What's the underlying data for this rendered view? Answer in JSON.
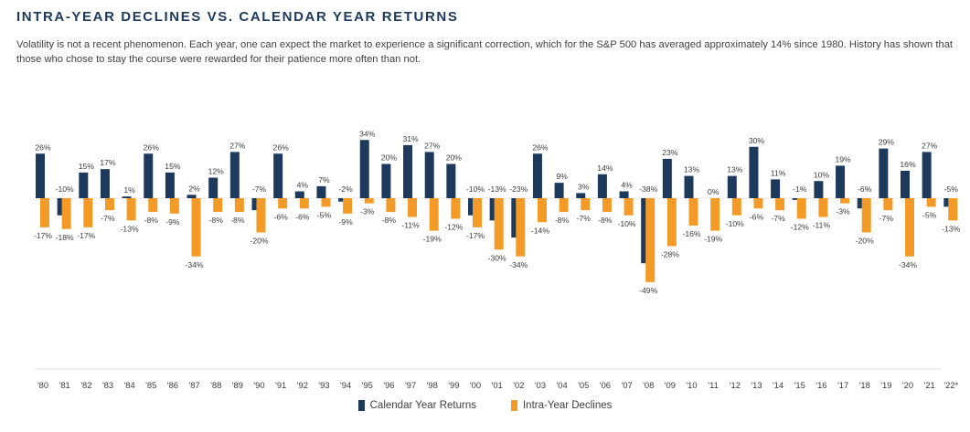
{
  "title": "INTRA-YEAR DECLINES VS. CALENDAR YEAR RETURNS",
  "subtitle": "Volatility is not a recent phenomenon. Each year, one can expect the market to experience a significant correction, which for the S&P 500 has averaged approximately 14% since 1980. History has shown that those who chose to stay the course were rewarded for their patience more often than not.",
  "colors": {
    "calendar_year_returns": "#1d3a5c",
    "intra_year_declines": "#f39b26"
  },
  "legend": {
    "returns_label": "Calendar Year Returns",
    "declines_label": "Intra-Year Declines"
  },
  "chart_data": {
    "type": "bar",
    "title": "INTRA-YEAR DECLINES VS. CALENDAR YEAR RETURNS",
    "xlabel": "",
    "ylabel": "",
    "ylim": [
      -49,
      34
    ],
    "grid": false,
    "legend_position": "bottom-center",
    "categories": [
      "'80",
      "'81",
      "'82",
      "'83",
      "'84",
      "'85",
      "'86",
      "'87",
      "'88",
      "'89",
      "'90",
      "'91",
      "'92",
      "'93",
      "'94",
      "'95",
      "'96",
      "'97",
      "'98",
      "'99",
      "'00",
      "'01",
      "'02",
      "'03",
      "'04",
      "'05",
      "'06",
      "'07",
      "'08",
      "'09",
      "'10",
      "'11",
      "'12",
      "'13",
      "'14",
      "'15",
      "'16",
      "'17",
      "'18",
      "'19",
      "'20",
      "'21",
      "'22*"
    ],
    "series": [
      {
        "name": "Calendar Year Returns",
        "values": [
          26,
          -10,
          15,
          17,
          1,
          26,
          15,
          2,
          12,
          27,
          -7,
          26,
          4,
          7,
          -2,
          34,
          20,
          31,
          27,
          20,
          -10,
          -13,
          -23,
          26,
          9,
          3,
          14,
          4,
          -38,
          23,
          13,
          0,
          13,
          30,
          11,
          -1,
          10,
          19,
          -6,
          29,
          16,
          27,
          -5
        ],
        "labels": [
          "26%",
          "-10%",
          "15%",
          "17%",
          "1%",
          "26%",
          "15%",
          "2%",
          "12%",
          "27%",
          "-7%",
          "26%",
          "4%",
          "7%",
          "-2%",
          "34%",
          "20%",
          "31%",
          "27%",
          "20%",
          "-10%",
          "-13%",
          "-23%",
          "26%",
          "9%",
          "3%",
          "14%",
          "4%",
          "-38%",
          "23%",
          "13%",
          "0%",
          "13%",
          "30%",
          "11%",
          "-1%",
          "10%",
          "19%",
          "-6%",
          "29%",
          "16%",
          "27%",
          "-5%"
        ]
      },
      {
        "name": "Intra-Year Declines",
        "values": [
          -17,
          -18,
          -17,
          -7,
          -13,
          -8,
          -9,
          -34,
          -8,
          -8,
          -20,
          -6,
          -6,
          -5,
          -9,
          -3,
          -8,
          -11,
          -19,
          -12,
          -17,
          -30,
          -34,
          -14,
          -8,
          -7,
          -8,
          -10,
          -49,
          -28,
          -16,
          -19,
          -10,
          -6,
          -7,
          -12,
          -11,
          -3,
          -20,
          -7,
          -34,
          -5,
          -13
        ],
        "labels": [
          "-17%",
          "-18%",
          "-17%",
          "-7%",
          "-13%",
          "-8%",
          "-9%",
          "-34%",
          "-8%",
          "-8%",
          "-20%",
          "-6%",
          "-6%",
          "-5%",
          "-9%",
          "-3%",
          "-8%",
          "-11%",
          "-19%",
          "-12%",
          "-17%",
          "-30%",
          "-34%",
          "-14%",
          "-8%",
          "-7%",
          "-8%",
          "-10%",
          "-49%",
          "-28%",
          "-16%",
          "-19%",
          "-10%",
          "-6%",
          "-7%",
          "-12%",
          "-11%",
          "-3%",
          "-20%",
          "-7%",
          "-34%",
          "-5%",
          "-13%"
        ]
      }
    ]
  }
}
